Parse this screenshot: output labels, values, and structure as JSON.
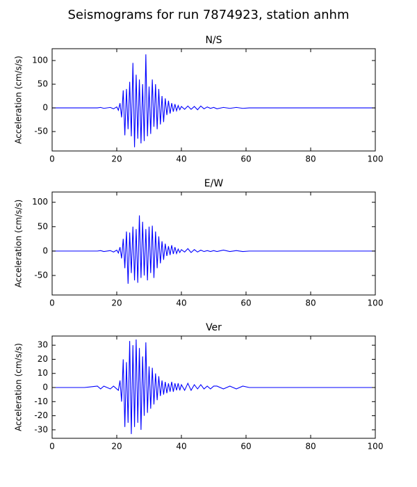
{
  "title": "Seismograms for run 7874923, station anhm",
  "chart_data": [
    {
      "type": "line",
      "title": "N/S",
      "y_label": "Acceleration (cm/s/s)",
      "color": "#0000ff",
      "xlim": [
        0,
        100
      ],
      "xticks": [
        0,
        20,
        40,
        60,
        80,
        100
      ],
      "ylim": [
        -91,
        125
      ],
      "yticks": [
        -50,
        0,
        50,
        100
      ],
      "x": [
        0,
        10,
        14,
        15,
        16,
        18,
        19,
        20,
        20.5,
        21,
        21.5,
        22,
        22.5,
        23,
        23.5,
        24,
        24.5,
        25,
        25.5,
        26,
        26.5,
        27,
        27.5,
        28,
        28.5,
        29,
        29.5,
        30,
        30.5,
        31,
        31.5,
        32,
        32.5,
        33,
        33.5,
        34,
        34.5,
        35,
        35.5,
        36,
        36.5,
        37,
        37.5,
        38,
        38.5,
        39,
        39.5,
        40,
        41,
        42,
        43,
        44,
        45,
        46,
        47,
        48,
        49,
        50,
        51,
        53,
        55,
        57,
        59,
        61,
        63,
        65,
        70,
        100
      ],
      "values": [
        0,
        0,
        0,
        1,
        -1,
        1,
        -2,
        2,
        -5,
        10,
        -20,
        37,
        -58,
        40,
        -45,
        55,
        -60,
        95,
        -83,
        70,
        -65,
        60,
        -75,
        50,
        -70,
        113,
        -60,
        45,
        -55,
        60,
        -40,
        50,
        -45,
        40,
        -35,
        25,
        -30,
        20,
        -15,
        15,
        -12,
        10,
        -8,
        8,
        -6,
        5,
        -4,
        3,
        -3,
        4,
        -3,
        3,
        -4,
        4,
        -2,
        2,
        -1,
        1,
        -2,
        1,
        -1,
        1,
        -1,
        0,
        0,
        0,
        0,
        0
      ]
    },
    {
      "type": "line",
      "title": "E/W",
      "y_label": "Acceleration (cm/s/s)",
      "color": "#0000ff",
      "xlim": [
        0,
        100
      ],
      "xticks": [
        0,
        20,
        40,
        60,
        80,
        100
      ],
      "ylim": [
        -90,
        121
      ],
      "yticks": [
        -50,
        0,
        50,
        100
      ],
      "x": [
        0,
        10,
        14,
        15,
        16,
        18,
        19,
        20,
        20.5,
        21,
        21.5,
        22,
        22.5,
        23,
        23.5,
        24,
        24.5,
        25,
        25.5,
        26,
        26.5,
        27,
        27.5,
        28,
        28.5,
        29,
        29.5,
        30,
        30.5,
        31,
        31.5,
        32,
        32.5,
        33,
        33.5,
        34,
        34.5,
        35,
        35.5,
        36,
        36.5,
        37,
        37.5,
        38,
        38.5,
        39,
        39.5,
        40,
        41,
        42,
        43,
        44,
        45,
        46,
        47,
        48,
        49,
        50,
        51,
        53,
        55,
        57,
        59,
        61,
        63,
        65,
        70,
        100
      ],
      "values": [
        0,
        0,
        0,
        1,
        -1,
        1,
        -2,
        2,
        -4,
        8,
        -15,
        25,
        -35,
        40,
        -67,
        38,
        -45,
        50,
        -60,
        45,
        -65,
        73,
        -55,
        60,
        -50,
        45,
        -60,
        50,
        -45,
        52,
        -55,
        40,
        -35,
        30,
        -25,
        20,
        -18,
        15,
        -10,
        10,
        -8,
        12,
        -6,
        8,
        -5,
        4,
        -3,
        3,
        -2,
        5,
        -3,
        3,
        -2,
        2,
        -1,
        1,
        -1,
        1,
        -1,
        2,
        -1,
        1,
        -1,
        0,
        0,
        0,
        0,
        0
      ]
    },
    {
      "type": "line",
      "title": "Ver",
      "y_label": "Acceleration (cm/s/s)",
      "color": "#0000ff",
      "xlim": [
        0,
        100
      ],
      "xticks": [
        0,
        20,
        40,
        60,
        80,
        100
      ],
      "ylim": [
        -36,
        36.5
      ],
      "yticks": [
        -30,
        -20,
        -10,
        0,
        10,
        20,
        30
      ],
      "x": [
        0,
        10,
        14,
        15,
        16,
        18,
        19,
        20,
        20.5,
        21,
        21.5,
        22,
        22.5,
        23,
        23.5,
        24,
        24.5,
        25,
        25.5,
        26,
        26.5,
        27,
        27.5,
        28,
        28.5,
        29,
        29.5,
        30,
        30.5,
        31,
        31.5,
        32,
        32.5,
        33,
        33.5,
        34,
        34.5,
        35,
        35.5,
        36,
        36.5,
        37,
        37.5,
        38,
        38.5,
        39,
        39.5,
        40,
        41,
        42,
        43,
        44,
        45,
        46,
        47,
        48,
        49,
        50,
        51,
        53,
        55,
        57,
        59,
        61,
        63,
        65,
        70,
        100
      ],
      "values": [
        0,
        0,
        1,
        -1,
        1,
        -1,
        1,
        -1,
        -2,
        5,
        -10,
        20,
        -28,
        18,
        -25,
        33,
        -33,
        30,
        -28,
        34,
        -25,
        28,
        -30,
        22,
        -20,
        32,
        -18,
        15,
        -15,
        14,
        -12,
        10,
        -9,
        8,
        -6,
        5,
        -5,
        4,
        -4,
        3,
        -3,
        4,
        -3,
        3,
        -2,
        3,
        -2,
        2,
        -2,
        3,
        -2,
        2,
        -1,
        2,
        -1,
        1,
        -1,
        1,
        1,
        -1,
        1,
        -1,
        1,
        0,
        0,
        0,
        0,
        0
      ]
    }
  ]
}
